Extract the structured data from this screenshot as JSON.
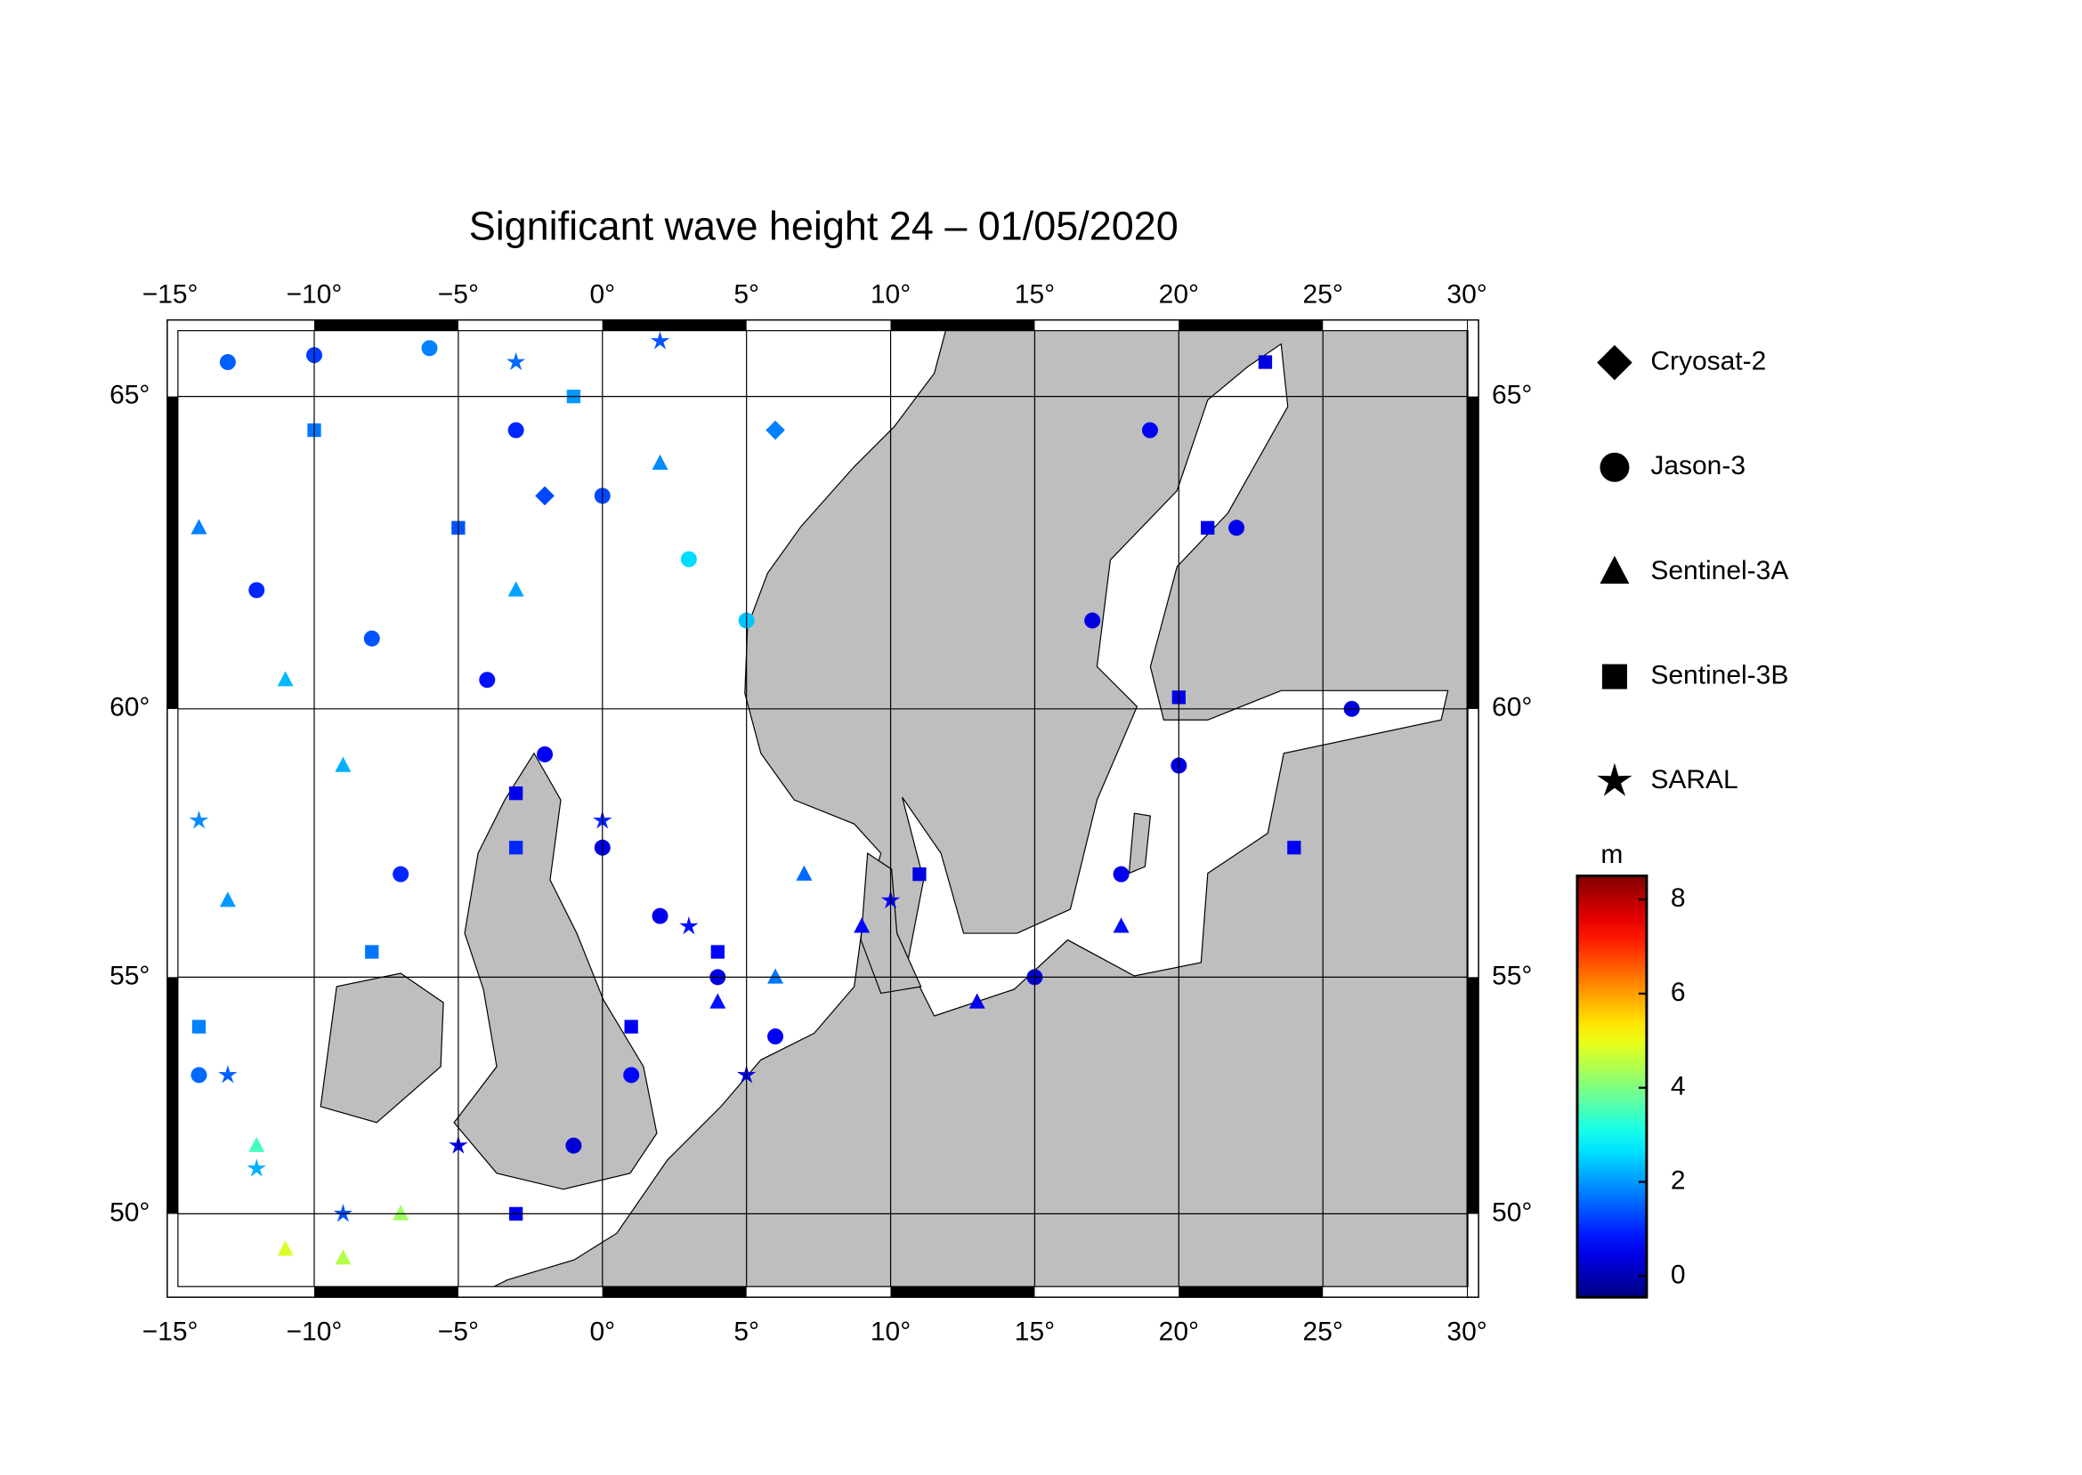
{
  "chart_data": {
    "type": "map",
    "title": "Significant wave height 24 – 01/05/2020",
    "projection": "mercator",
    "xlim": [
      -15.1,
      30.4
    ],
    "ylim": [
      48.1,
      66.1
    ],
    "xticks": [
      {
        "value": -15,
        "label": "−15°"
      },
      {
        "value": -10,
        "label": "−10°"
      },
      {
        "value": -5,
        "label": "−5°"
      },
      {
        "value": 0,
        "label": "0°"
      },
      {
        "value": 5,
        "label": "5°"
      },
      {
        "value": 10,
        "label": "10°"
      },
      {
        "value": 15,
        "label": "15°"
      },
      {
        "value": 20,
        "label": "20°"
      },
      {
        "value": 25,
        "label": "25°"
      },
      {
        "value": 30,
        "label": "30°"
      }
    ],
    "yticks": [
      {
        "value": 50,
        "label": "50°"
      },
      {
        "value": 55,
        "label": "55°"
      },
      {
        "value": 60,
        "label": "60°"
      },
      {
        "value": 65,
        "label": "65°"
      }
    ],
    "grid": true,
    "colorbar": {
      "label": "m",
      "clim": [
        -0.45,
        8.5
      ],
      "ticks": [
        0,
        2,
        4,
        6,
        8
      ],
      "colormap": "jet"
    },
    "series": [
      {
        "name": "Cryosat-2",
        "marker": "diamond",
        "lon": [
          -2,
          6
        ],
        "lat": [
          63.5,
          64.5
        ],
        "values": [
          1.3,
          1.8
        ]
      },
      {
        "name": "Jason-3",
        "marker": "circle",
        "lon": [
          -13,
          -10,
          -6,
          -3,
          0,
          3,
          5,
          -12,
          -8,
          -4,
          -2,
          0,
          2,
          4,
          6,
          1,
          -1,
          19,
          22,
          17,
          20,
          18,
          15,
          26,
          -14,
          -7
        ],
        "lat": [
          65.5,
          65.6,
          65.7,
          64.5,
          63.5,
          62.5,
          61.5,
          62,
          61.2,
          60.5,
          59.2,
          57.5,
          56.2,
          55,
          53.8,
          53,
          51.5,
          64.5,
          63,
          61.5,
          59,
          57,
          55,
          60,
          53,
          57
        ],
        "values": [
          1.5,
          1.2,
          1.8,
          1.0,
          1.3,
          2.6,
          2.4,
          1.0,
          1.4,
          0.8,
          0.6,
          0.4,
          0.5,
          0.4,
          0.6,
          0.7,
          0.3,
          0.6,
          0.5,
          0.4,
          0.4,
          0.5,
          0.3,
          0.4,
          1.6,
          1.0
        ]
      },
      {
        "name": "Sentinel-3A",
        "marker": "triangle",
        "lon": [
          -14,
          -11,
          -9,
          -13,
          -12,
          -9,
          -7,
          -11,
          7,
          6,
          4,
          9,
          18,
          13,
          -3,
          2
        ],
        "lat": [
          63,
          60.5,
          59,
          56.5,
          51.5,
          49,
          50,
          49.2,
          57,
          55,
          54.5,
          56,
          56,
          54.5,
          62,
          64
        ],
        "values": [
          1.8,
          2.3,
          2.2,
          2.0,
          3.5,
          4.5,
          4.3,
          4.8,
          1.6,
          1.7,
          0.8,
          0.7,
          0.8,
          0.5,
          2.1,
          1.9
        ]
      },
      {
        "name": "Sentinel-3B",
        "marker": "square",
        "lon": [
          -10,
          -5,
          -1,
          -3,
          -3,
          1,
          4,
          -8,
          23,
          21,
          24,
          20,
          11,
          -3,
          -14
        ],
        "lat": [
          64.5,
          63,
          65,
          58.5,
          57.5,
          54,
          55.5,
          55.5,
          65.5,
          63,
          57.5,
          60.2,
          57,
          50,
          54
        ],
        "values": [
          1.7,
          1.4,
          2.0,
          0.5,
          1.0,
          0.6,
          0.7,
          1.7,
          0.4,
          0.5,
          0.6,
          0.5,
          0.4,
          0.5,
          1.8
        ]
      },
      {
        "name": "SARAL",
        "marker": "star",
        "lon": [
          -13,
          -12,
          -9,
          -5,
          0,
          3,
          5,
          -3,
          2,
          -14,
          10
        ],
        "lat": [
          53,
          51,
          50,
          51.5,
          58,
          56,
          53,
          65.5,
          65.8,
          58,
          56.5
        ],
        "values": [
          1.5,
          2.2,
          1.4,
          0.6,
          1.0,
          0.8,
          0.4,
          1.6,
          1.4,
          1.9,
          0.6
        ]
      }
    ]
  }
}
